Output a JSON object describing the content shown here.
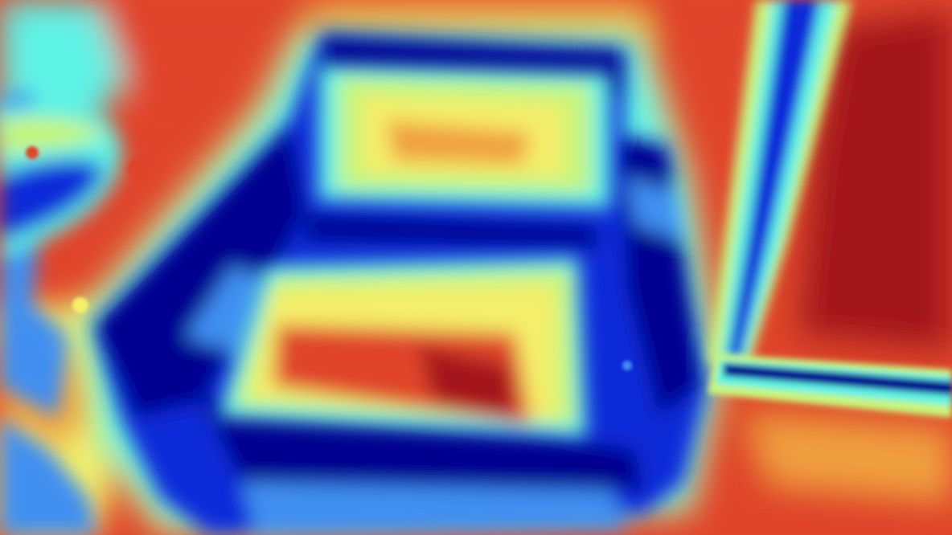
{
  "image": {
    "kind": "jet-colormap-heatmap",
    "subject": "armchair-and-door",
    "palette": {
      "deep_blue": "#00008f",
      "blue": "#0a2bd8",
      "light_blue": "#3f8ff0",
      "cyan": "#5ff3e6",
      "green_yellow": "#c8f57a",
      "yellow": "#f4ee6a",
      "orange": "#f0a040",
      "red": "#e0452b",
      "dark_red": "#a3161a"
    }
  }
}
